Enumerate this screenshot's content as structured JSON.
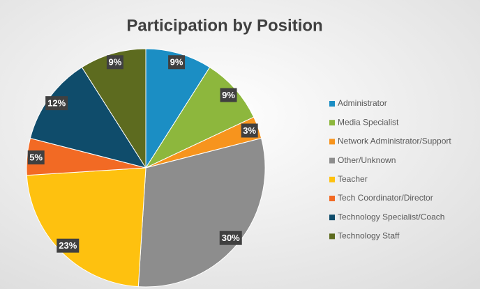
{
  "chart_data": {
    "type": "pie",
    "title": "Participation by Position",
    "categories": [
      "Administrator",
      "Media Specialist",
      "Network Administrator/Support",
      "Other/Unknown",
      "Teacher",
      "Tech Coordinator/Director",
      "Technology Specialist/Coach",
      "Technology Staff"
    ],
    "values": [
      9,
      9,
      3,
      30,
      23,
      5,
      12,
      9
    ],
    "value_labels": [
      "9%",
      "9%",
      "3%",
      "30%",
      "23%",
      "5%",
      "12%",
      "9%"
    ],
    "colors": [
      "#1b8ec4",
      "#8db73d",
      "#f7941d",
      "#8d8d8d",
      "#fec10f",
      "#f26a24",
      "#0f4c6b",
      "#5d6b1f"
    ],
    "legend": "right"
  }
}
